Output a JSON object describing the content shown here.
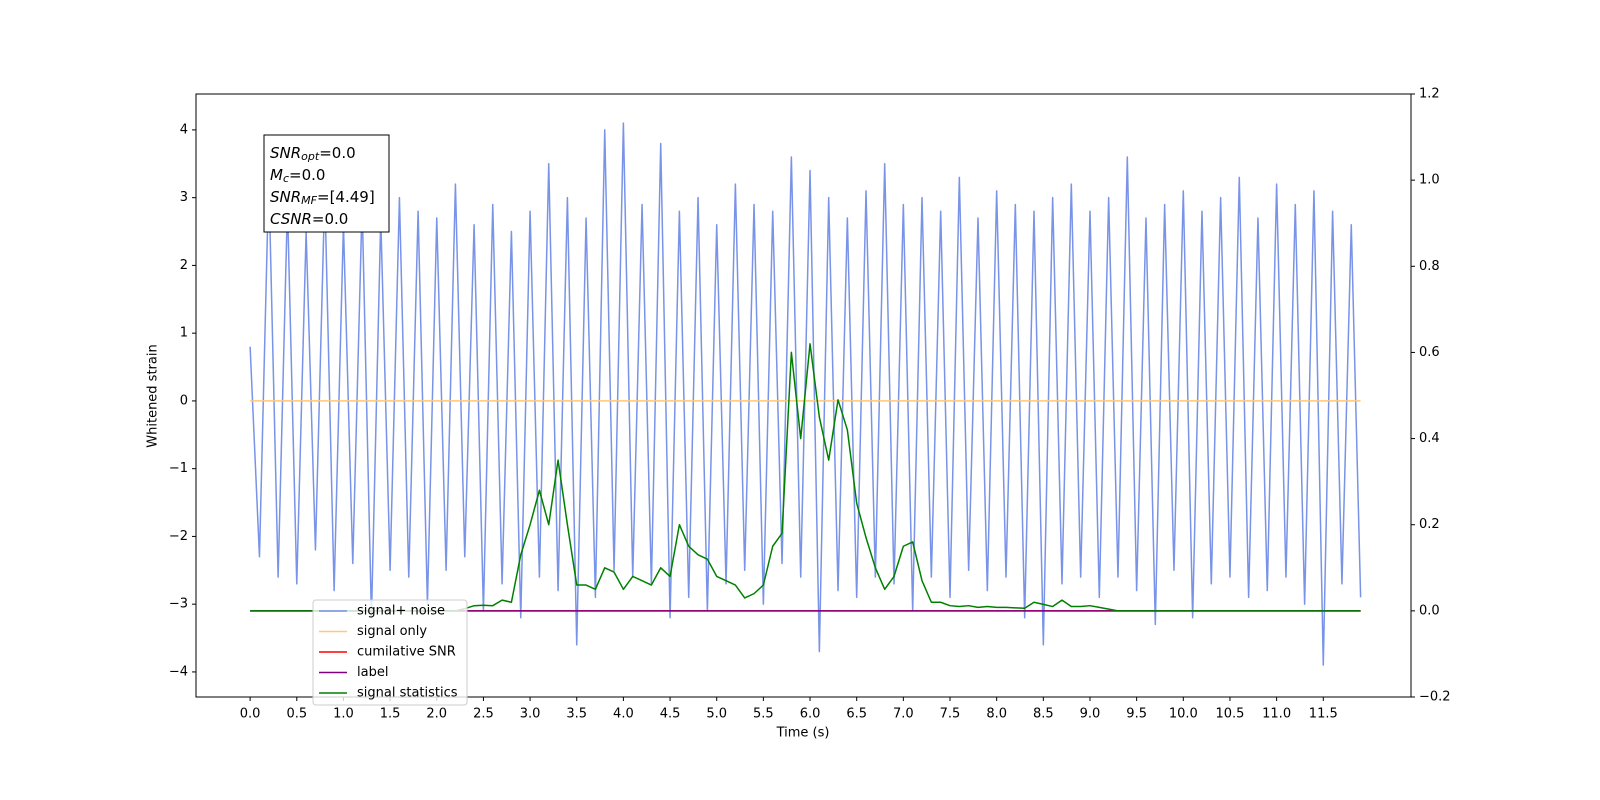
{
  "chart_data": {
    "type": "line",
    "xlabel": "Time (s)",
    "ylabel": "Whitened strain",
    "xlim": [
      -0.58,
      12.44
    ],
    "ylim": [
      -4.37,
      4.53
    ],
    "y2lim": [
      -0.2,
      1.2
    ],
    "xticks": [
      {
        "value": 0,
        "label": "0.0"
      },
      0.5,
      {
        "value": 1,
        "label": "1.0"
      },
      1.5,
      {
        "value": 2,
        "label": "2.0"
      },
      2.5,
      {
        "value": 3,
        "label": "3.0"
      },
      3.5,
      {
        "value": 4,
        "label": "4.0"
      },
      4.5,
      {
        "value": 5,
        "label": "5.0"
      },
      5.5,
      {
        "value": 6,
        "label": "6.0"
      },
      6.5,
      {
        "value": 7,
        "label": "7.0"
      },
      7.5,
      {
        "value": 8,
        "label": "8.0"
      },
      8.5,
      {
        "value": 9,
        "label": "9.0"
      },
      9.5,
      {
        "value": 10,
        "label": "10.0"
      },
      10.5,
      {
        "value": 11,
        "label": "11.0"
      },
      11.5
    ],
    "yticks": [
      {
        "value": -4,
        "label": "−4"
      },
      {
        "value": -3,
        "label": "−3"
      },
      {
        "value": -2,
        "label": "−2"
      },
      {
        "value": -1,
        "label": "−1"
      },
      0,
      1,
      2,
      3,
      4
    ],
    "y2ticks": [
      {
        "value": -0.2,
        "label": "−0.2"
      },
      {
        "value": 0,
        "label": "0.0"
      },
      0.2,
      0.4,
      0.6,
      0.8,
      {
        "value": 1,
        "label": "1.0"
      },
      1.2
    ],
    "annotation": [
      {
        "name": "SNR",
        "sub": "opt",
        "text": "=0.0"
      },
      {
        "name": "M",
        "sub": "c",
        "text": "=0.0"
      },
      {
        "name": "SNR",
        "sub": "MF",
        "text": "=[4.49]"
      },
      {
        "name": "CSNR",
        "sub": null,
        "text": "=0.0"
      }
    ],
    "x": [
      0,
      0.1,
      0.2,
      0.3,
      0.4,
      0.5,
      0.6,
      0.7,
      0.8,
      0.9,
      1,
      1.1,
      1.2,
      1.3,
      1.4,
      1.5,
      1.6,
      1.7,
      1.8,
      1.9,
      2,
      2.1,
      2.2,
      2.3,
      2.4,
      2.5,
      2.6,
      2.7,
      2.8,
      2.9,
      3,
      3.1,
      3.2,
      3.3,
      3.4,
      3.5,
      3.6,
      3.7,
      3.8,
      3.9,
      4,
      4.1,
      4.2,
      4.3,
      4.4,
      4.5,
      4.6,
      4.7,
      4.8,
      4.9,
      5,
      5.1,
      5.2,
      5.3,
      5.4,
      5.5,
      5.6,
      5.7,
      5.8,
      5.9,
      6,
      6.1,
      6.2,
      6.3,
      6.4,
      6.5,
      6.6,
      6.7,
      6.8,
      6.9,
      7,
      7.1,
      7.2,
      7.3,
      7.4,
      7.5,
      7.6,
      7.7,
      7.8,
      7.9,
      8,
      8.1,
      8.2,
      8.3,
      8.4,
      8.5,
      8.6,
      8.7,
      8.8,
      8.9,
      9,
      9.1,
      9.2,
      9.3,
      9.4,
      9.5,
      9.6,
      9.7,
      9.8,
      9.9,
      10,
      10.1,
      10.2,
      10.3,
      10.4,
      10.5,
      10.6,
      10.7,
      10.8,
      10.9,
      11,
      11.1,
      11.2,
      11.3,
      11.4,
      11.5,
      11.6,
      11.7,
      11.8,
      11.9
    ],
    "series": [
      {
        "name": "signal+ noise",
        "color": "#7893e8",
        "axis": "y",
        "values": [
          0.8,
          -2.3,
          3.3,
          -2.6,
          2.9,
          -2.7,
          2.5,
          -2.2,
          3.1,
          -2.8,
          2.6,
          -2.4,
          2.9,
          -3.2,
          2.7,
          -2.5,
          3.0,
          -2.6,
          2.8,
          -3.0,
          2.7,
          -2.5,
          3.2,
          -2.3,
          2.6,
          -3.1,
          2.9,
          -2.7,
          2.5,
          -3.2,
          2.8,
          -2.6,
          3.5,
          -2.8,
          3.0,
          -3.6,
          2.7,
          -2.9,
          4.0,
          -2.5,
          4.1,
          -2.6,
          2.9,
          -2.7,
          3.8,
          -3.2,
          2.8,
          -2.9,
          3.0,
          -3.1,
          2.6,
          -2.7,
          3.2,
          -2.5,
          2.9,
          -3.0,
          2.8,
          -2.4,
          3.6,
          -2.6,
          3.4,
          -3.7,
          3.0,
          -2.8,
          2.7,
          -2.9,
          3.1,
          -2.6,
          3.5,
          -2.7,
          2.9,
          -3.1,
          3.0,
          -2.6,
          2.8,
          -2.9,
          3.3,
          -2.5,
          2.7,
          -2.8,
          3.1,
          -2.6,
          2.9,
          -3.2,
          2.8,
          -3.6,
          3.0,
          -2.7,
          3.2,
          -2.6,
          2.8,
          -2.9,
          3.0,
          -2.6,
          3.6,
          -2.8,
          2.7,
          -3.3,
          2.9,
          -2.5,
          3.1,
          -3.2,
          2.8,
          -2.7,
          3.0,
          -2.6,
          3.3,
          -2.9,
          2.7,
          -2.8,
          3.2,
          -2.6,
          2.9,
          -3.0,
          3.1,
          -3.9,
          2.8,
          -2.7,
          2.6,
          -2.9
        ]
      },
      {
        "name": "signal only",
        "color": "#ffc878",
        "axis": "y",
        "x": [
          0,
          11.9
        ],
        "values": [
          0,
          0
        ]
      },
      {
        "name": "cumilative SNR",
        "color": "#ff0000",
        "axis": "y2",
        "x": [
          0,
          11.9
        ],
        "values": [
          0,
          0
        ]
      },
      {
        "name": "label",
        "color": "#800080",
        "axis": "y2",
        "x": [
          0,
          11.9
        ],
        "values": [
          0,
          0
        ]
      },
      {
        "name": "signal statistics",
        "color": "#008000",
        "axis": "y2",
        "values": [
          0,
          0,
          0,
          0,
          0,
          0,
          0,
          0,
          0,
          0,
          0,
          0,
          0,
          0,
          0,
          0,
          0,
          0,
          0,
          0,
          0,
          0,
          0,
          0.005,
          0.012,
          0.013,
          0.012,
          0.025,
          0.02,
          0.13,
          0.2,
          0.28,
          0.2,
          0.35,
          0.2,
          0.06,
          0.06,
          0.05,
          0.1,
          0.09,
          0.05,
          0.08,
          0.07,
          0.06,
          0.1,
          0.08,
          0.2,
          0.15,
          0.13,
          0.12,
          0.08,
          0.07,
          0.06,
          0.03,
          0.04,
          0.06,
          0.15,
          0.18,
          0.6,
          0.4,
          0.62,
          0.45,
          0.35,
          0.49,
          0.42,
          0.25,
          0.17,
          0.1,
          0.05,
          0.08,
          0.15,
          0.16,
          0.07,
          0.02,
          0.02,
          0.012,
          0.01,
          0.012,
          0.008,
          0.01,
          0.008,
          0.008,
          0.007,
          0.006,
          0.02,
          0.015,
          0.01,
          0.025,
          0.01,
          0.01,
          0.012,
          0.008,
          0.004,
          0,
          0,
          0,
          0,
          0,
          0,
          0,
          0,
          0,
          0,
          0,
          0,
          0,
          0,
          0,
          0,
          0,
          0,
          0,
          0,
          0,
          0,
          0,
          0,
          0,
          0,
          0
        ]
      }
    ]
  }
}
